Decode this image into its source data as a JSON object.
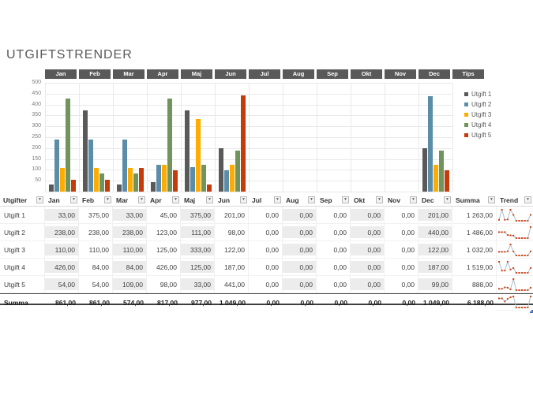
{
  "title": "UTGIFTSTRENDER",
  "tabs": [
    "Jan",
    "Feb",
    "Mar",
    "Apr",
    "Maj",
    "Jun",
    "Jul",
    "Aug",
    "Sep",
    "Okt",
    "Nov",
    "Dec",
    "Tips"
  ],
  "colors": {
    "tab_bg": "#595959",
    "series": [
      "#595959",
      "#5B8CA8",
      "#FFAB00",
      "#71935C",
      "#C43B0C"
    ],
    "band": "#ececec",
    "spark_line": "#a9bdcb",
    "spark_marker": "#d6400f"
  },
  "chart_data": {
    "type": "bar",
    "title": "",
    "categories": [
      "Jan",
      "Feb",
      "Mar",
      "Apr",
      "Maj",
      "Jun",
      "Jul",
      "Aug",
      "Sep",
      "Okt",
      "Nov",
      "Dec"
    ],
    "series": [
      {
        "name": "Utgift 1",
        "values": [
          33,
          375,
          33,
          45,
          375,
          201,
          0,
          0,
          0,
          0,
          0,
          201
        ]
      },
      {
        "name": "Utgift 2",
        "values": [
          238,
          238,
          238,
          123,
          111,
          98,
          0,
          0,
          0,
          0,
          0,
          440
        ]
      },
      {
        "name": "Utgift 3",
        "values": [
          110,
          110,
          110,
          125,
          333,
          122,
          0,
          0,
          0,
          0,
          0,
          122
        ]
      },
      {
        "name": "Utgift 4",
        "values": [
          426,
          84,
          84,
          426,
          125,
          187,
          0,
          0,
          0,
          0,
          0,
          187
        ]
      },
      {
        "name": "Utgift 5",
        "values": [
          54,
          54,
          109,
          98,
          33,
          441,
          0,
          0,
          0,
          0,
          0,
          99
        ]
      }
    ],
    "ylim": [
      0,
      500
    ],
    "ytick_step": 50,
    "grid": true,
    "legend_position": "right"
  },
  "table": {
    "headers": [
      "Utgifter",
      "Jan",
      "Feb",
      "Mar",
      "Apr",
      "Maj",
      "Jun",
      "Jul",
      "Aug",
      "Sep",
      "Okt",
      "Nov",
      "Dec",
      "Summa",
      "Trend"
    ],
    "rows": [
      {
        "label": "Utgift 1",
        "values": [
          "33,00",
          "375,00",
          "33,00",
          "45,00",
          "375,00",
          "201,00",
          "0,00",
          "0,00",
          "0,00",
          "0,00",
          "0,00",
          "201,00"
        ],
        "summa": "1 263,00"
      },
      {
        "label": "Utgift 2",
        "values": [
          "238,00",
          "238,00",
          "238,00",
          "123,00",
          "111,00",
          "98,00",
          "0,00",
          "0,00",
          "0,00",
          "0,00",
          "0,00",
          "440,00"
        ],
        "summa": "1 486,00"
      },
      {
        "label": "Utgift 3",
        "values": [
          "110,00",
          "110,00",
          "110,00",
          "125,00",
          "333,00",
          "122,00",
          "0,00",
          "0,00",
          "0,00",
          "0,00",
          "0,00",
          "122,00"
        ],
        "summa": "1 032,00"
      },
      {
        "label": "Utgift 4",
        "values": [
          "426,00",
          "84,00",
          "84,00",
          "426,00",
          "125,00",
          "187,00",
          "0,00",
          "0,00",
          "0,00",
          "0,00",
          "0,00",
          "187,00"
        ],
        "summa": "1 519,00"
      },
      {
        "label": "Utgift 5",
        "values": [
          "54,00",
          "54,00",
          "109,00",
          "98,00",
          "33,00",
          "441,00",
          "0,00",
          "0,00",
          "0,00",
          "0,00",
          "0,00",
          "99,00"
        ],
        "summa": "888,00"
      }
    ],
    "total_row": {
      "label": "Summa",
      "values": [
        "861,00",
        "861,00",
        "574,00",
        "817,00",
        "977,00",
        "1 049,00",
        "0,00",
        "0,00",
        "0,00",
        "0,00",
        "0,00",
        "1 049,00"
      ],
      "summa": "6 188,00"
    }
  }
}
